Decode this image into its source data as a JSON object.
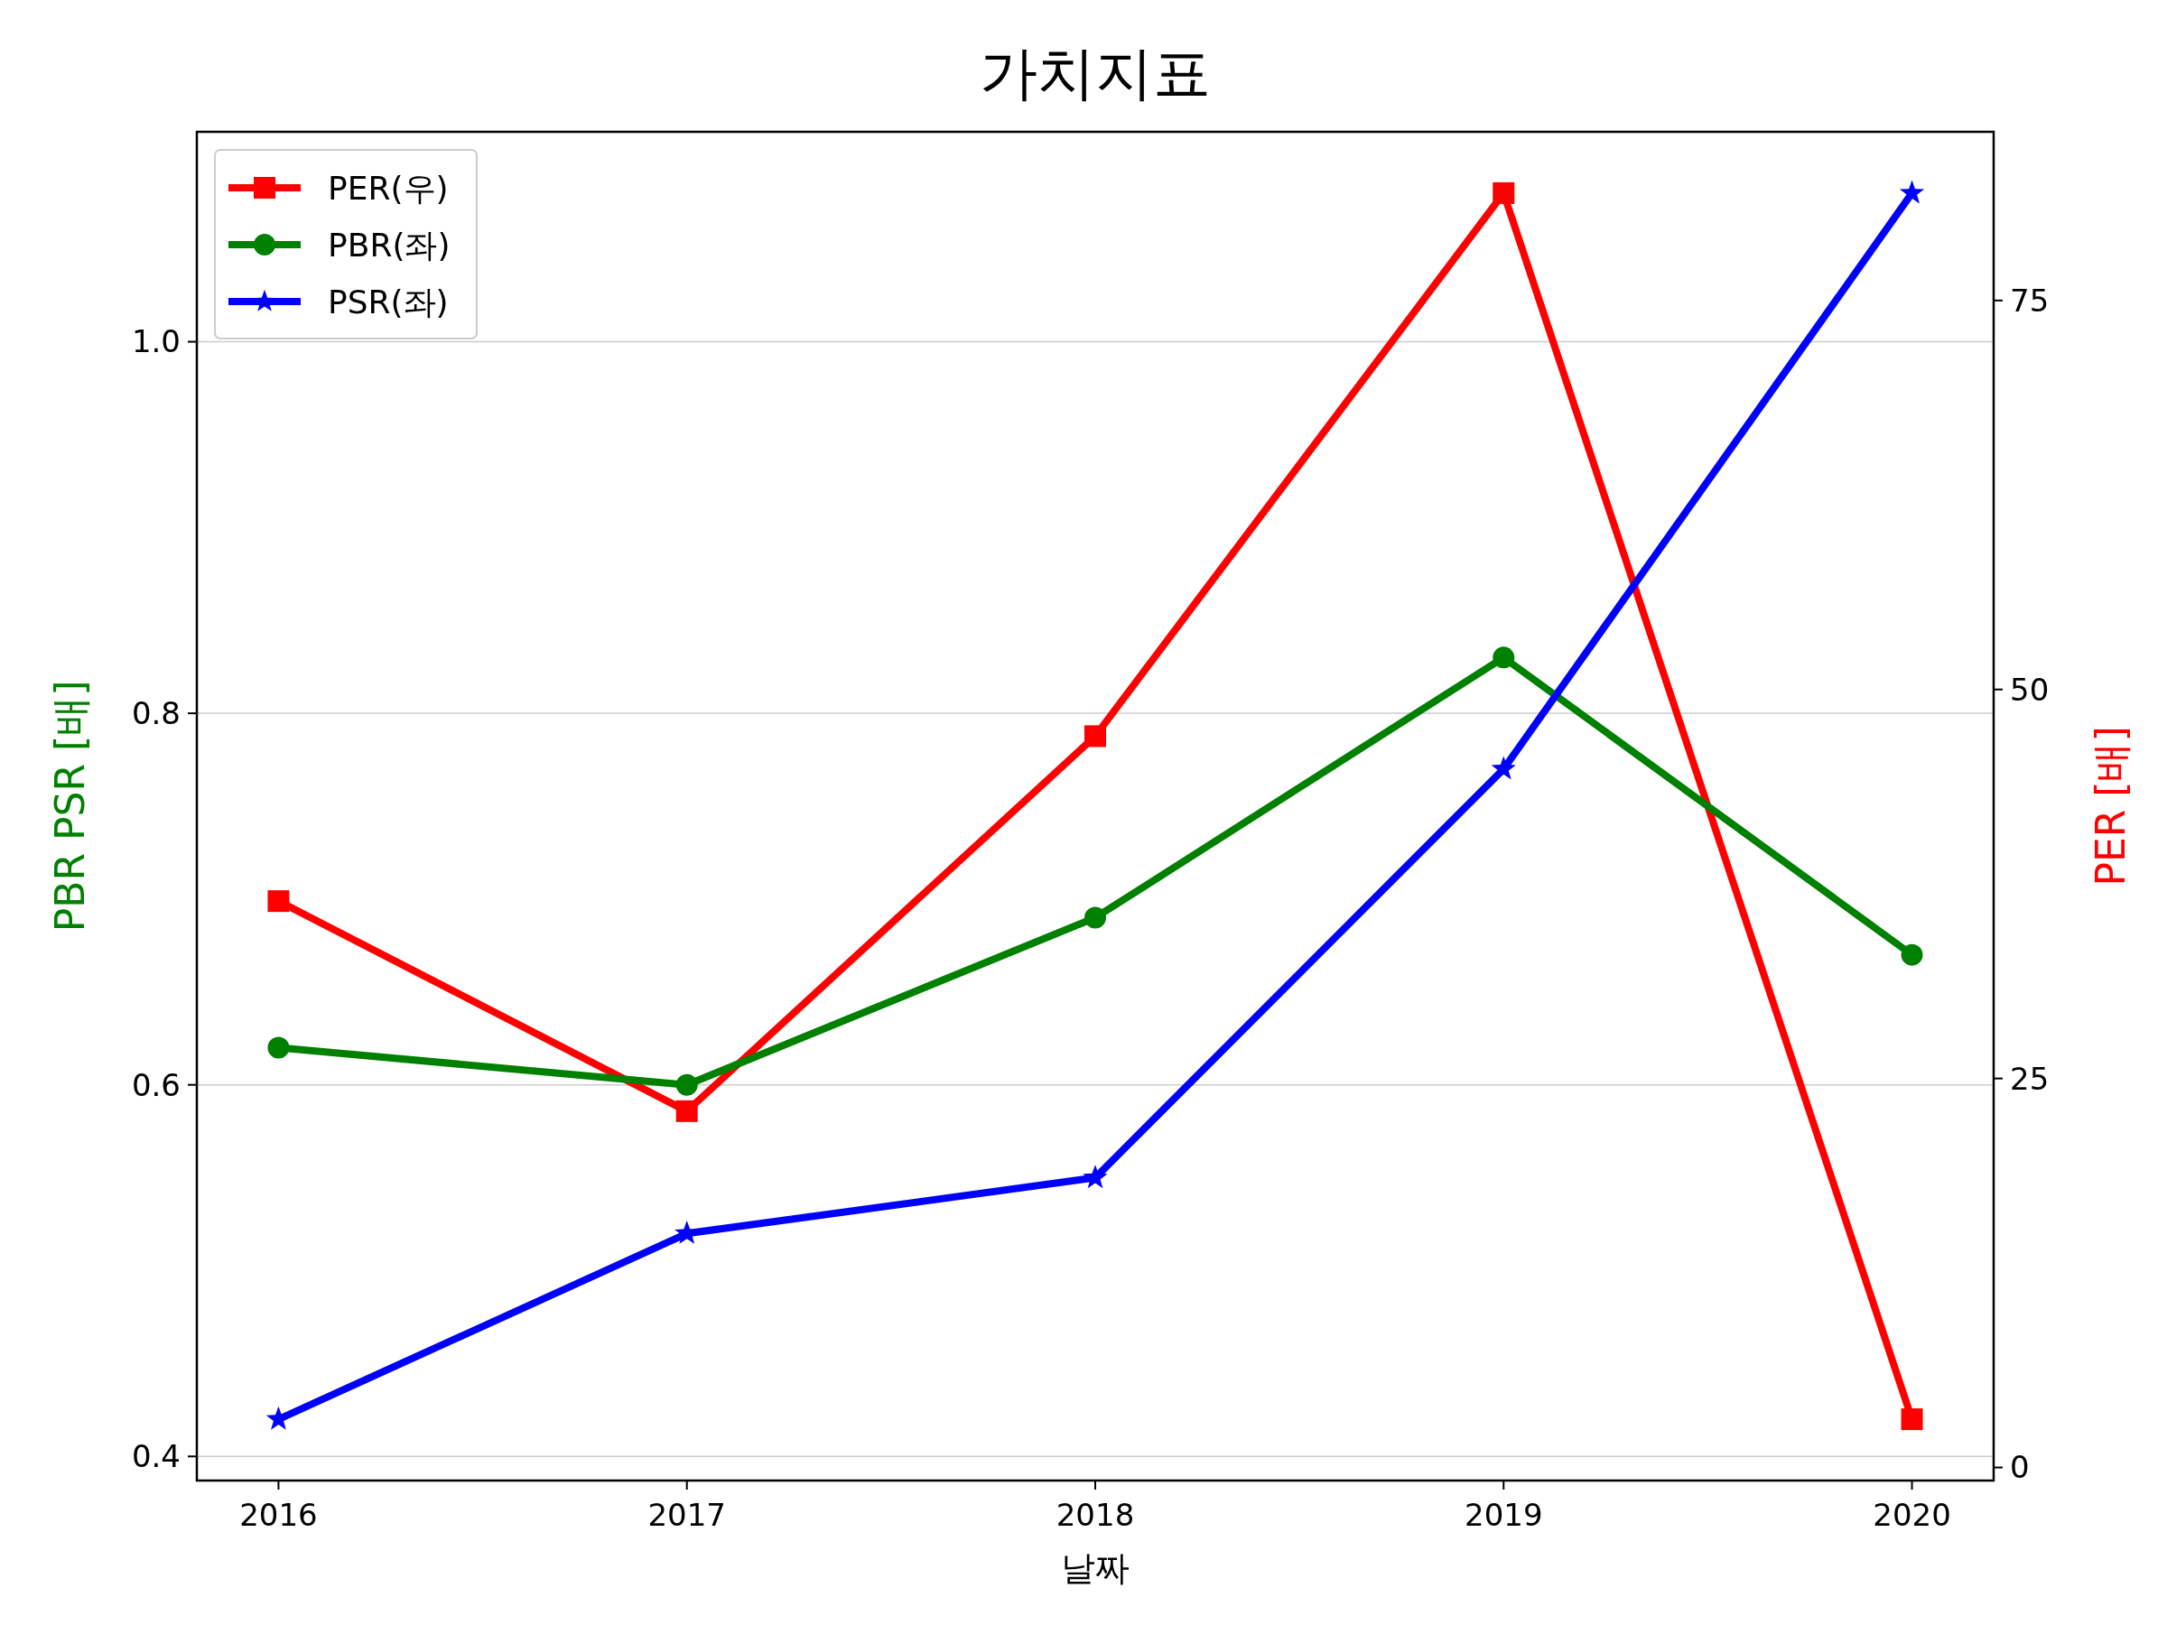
{
  "chart_data": {
    "type": "line",
    "title": "가치지표",
    "xlabel": "날짜",
    "ylabel": "PBR PSR [배]",
    "y2label": "PER [배]",
    "x": [
      2016,
      2017,
      2018,
      2019,
      2020
    ],
    "xlim": [
      2015.8,
      2020.2
    ],
    "xticks": [
      2016,
      2017,
      2018,
      2019,
      2020
    ],
    "ylim": [
      0.387,
      1.113
    ],
    "yticks": [
      0.4,
      0.6,
      0.8,
      {
        "value": 1,
        "label": "1.0"
      }
    ],
    "y2lim": [
      -0.84,
      85.84
    ],
    "y2ticks": [
      0,
      25,
      50,
      75
    ],
    "grid": "y",
    "legend": "top left",
    "series": [
      {
        "name": "PER(우)",
        "color": "#ff0000",
        "axis": "y2",
        "marker": "square",
        "values": [
          36.4,
          22.9,
          47.0,
          81.9,
          3.1
        ]
      },
      {
        "name": "PBR(좌)",
        "color": "#008000",
        "marker": "circle",
        "values": [
          0.62,
          0.6,
          0.69,
          0.83,
          0.67
        ]
      },
      {
        "name": "PSR(좌)",
        "color": "#0000ff",
        "marker": "star",
        "values": [
          0.42,
          0.52,
          0.55,
          0.77,
          1.08
        ]
      }
    ]
  }
}
